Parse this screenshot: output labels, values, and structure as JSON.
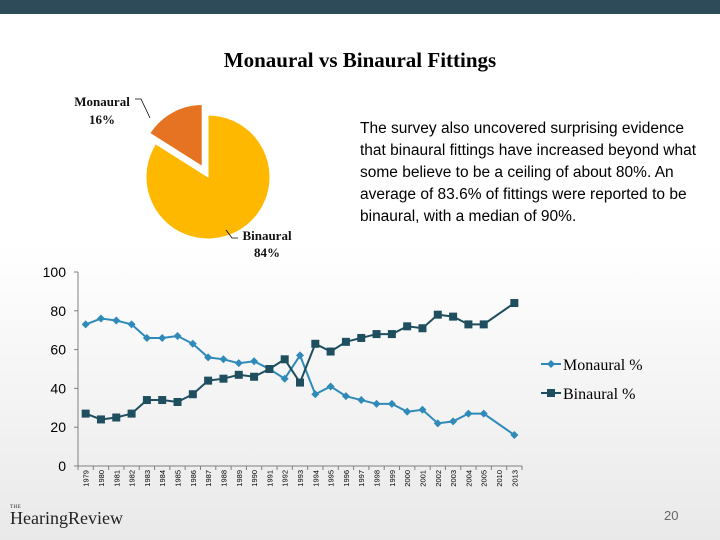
{
  "slide": {
    "title": "Monaural vs Binaural Fittings",
    "body": "The survey also uncovered surprising evidence that binaural fittings have increased beyond what some believe to be a ceiling of about 80%. An average of 83.6% of fittings were reported to be binaural, with a median of 90%.",
    "logo_small": "THE",
    "logo_text": "HearingReview",
    "page_number": "20",
    "colors": {
      "topbar": "#2e4b59",
      "monaural_pie": "#e57322",
      "binaural_pie": "#ffb800",
      "monaural_line": "#2f8ab9",
      "binaural_line": "#1f4e5f"
    }
  },
  "chart_data": [
    {
      "type": "pie",
      "slices": [
        {
          "name": "Monaural",
          "value": 16,
          "label": "16%",
          "color": "#e57322",
          "exploded": true
        },
        {
          "name": "Binaural",
          "value": 84,
          "label": "84%",
          "color": "#ffb800"
        }
      ]
    },
    {
      "type": "line",
      "x": [
        "1979",
        "1980",
        "1981",
        "1982",
        "1983",
        "1984",
        "1985",
        "1986",
        "1987",
        "1988",
        "1989",
        "1990",
        "1991",
        "1992",
        "1993",
        "1994",
        "1995",
        "1996",
        "1997",
        "1998",
        "1999",
        "2000",
        "2001",
        "2002",
        "2003",
        "2004",
        "2005",
        "2010",
        "2013"
      ],
      "series": [
        {
          "name": "Monaural %",
          "color": "#2f8ab9",
          "marker": "diamond",
          "values": [
            73,
            76,
            75,
            73,
            66,
            66,
            67,
            63,
            56,
            55,
            53,
            54,
            50,
            45,
            57,
            37,
            41,
            36,
            34,
            32,
            32,
            28,
            29,
            22,
            23,
            27,
            27,
            null,
            16
          ]
        },
        {
          "name": "Binaural %",
          "color": "#1f4e5f",
          "marker": "square",
          "values": [
            27,
            24,
            25,
            27,
            34,
            34,
            33,
            37,
            44,
            45,
            47,
            46,
            50,
            55,
            43,
            63,
            59,
            64,
            66,
            68,
            68,
            72,
            71,
            78,
            77,
            73,
            73,
            null,
            84
          ]
        }
      ],
      "ylim": [
        0,
        100
      ],
      "yticks": [
        "0",
        "20",
        "40",
        "60",
        "80",
        "100"
      ],
      "grid": false,
      "legend": "right"
    }
  ]
}
